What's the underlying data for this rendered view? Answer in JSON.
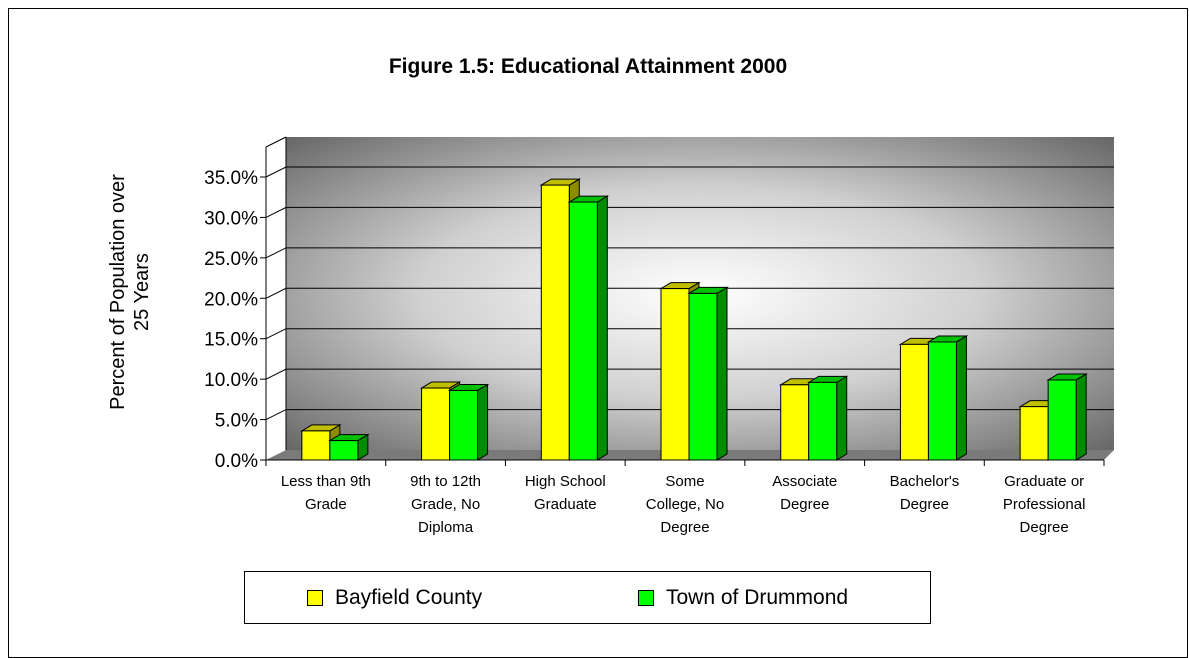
{
  "chart_data": {
    "type": "bar",
    "title": "Figure 1.5: Educational Attainment 2000",
    "xlabel": "",
    "ylabel": "Percent of Population over 25 Years",
    "ylabel_lines": [
      "Percent of Population over",
      "25 Years"
    ],
    "ylim": [
      0,
      35
    ],
    "yticks": [
      "0.0%",
      "5.0%",
      "10.0%",
      "15.0%",
      "20.0%",
      "25.0%",
      "30.0%",
      "35.0%"
    ],
    "grid": true,
    "legend_position": "bottom",
    "categories": [
      [
        "Less than 9th",
        "Grade"
      ],
      [
        "9th to 12th",
        "Grade, No",
        "Diploma"
      ],
      [
        "High School",
        "Graduate"
      ],
      [
        "Some",
        "College, No",
        "Degree"
      ],
      [
        "Associate",
        "Degree"
      ],
      [
        "Bachelor's",
        "Degree"
      ],
      [
        "Graduate or",
        "Professional",
        "Degree"
      ]
    ],
    "series": [
      {
        "name": "Bayfield County",
        "color": "#ffff00",
        "values": [
          3.6,
          8.9,
          34.0,
          21.2,
          9.3,
          14.3,
          6.6
        ]
      },
      {
        "name": "Town of Drummond",
        "color": "#00ff00",
        "values": [
          2.4,
          8.6,
          31.9,
          20.6,
          9.6,
          14.6,
          9.9
        ]
      }
    ]
  }
}
